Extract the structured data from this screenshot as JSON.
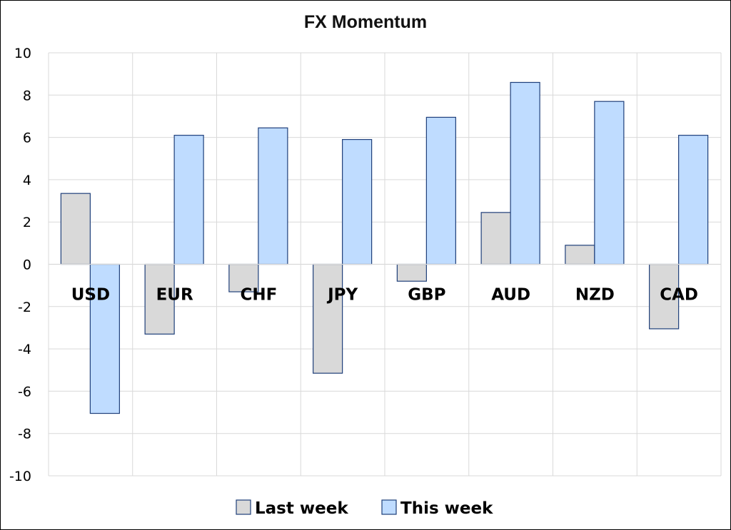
{
  "chart_data": {
    "type": "bar",
    "title": "FX Momentum",
    "xlabel": "",
    "ylabel": "",
    "categories": [
      "USD",
      "EUR",
      "CHF",
      "JPY",
      "GBP",
      "AUD",
      "NZD",
      "CAD"
    ],
    "series": [
      {
        "name": "Last week",
        "values": [
          3.35,
          -3.3,
          -1.3,
          -5.15,
          -0.8,
          2.45,
          0.9,
          -3.05
        ],
        "color": "#d9d9d9"
      },
      {
        "name": "This week",
        "values": [
          -7.05,
          6.1,
          6.45,
          5.9,
          6.95,
          8.6,
          7.7,
          6.1
        ],
        "color": "#bfdcff"
      }
    ],
    "ylim": [
      -10,
      10
    ],
    "yticks": [
      "10",
      "8",
      "6",
      "4",
      "2",
      "0",
      "-2",
      "-4",
      "-6",
      "-8",
      "-10"
    ],
    "grid": true,
    "legend_position": "bottom",
    "category_labels_position": "inside-at-zero-line",
    "bar_outline_color": "#1f3f7a",
    "grid_color": "#d9d9d9"
  }
}
